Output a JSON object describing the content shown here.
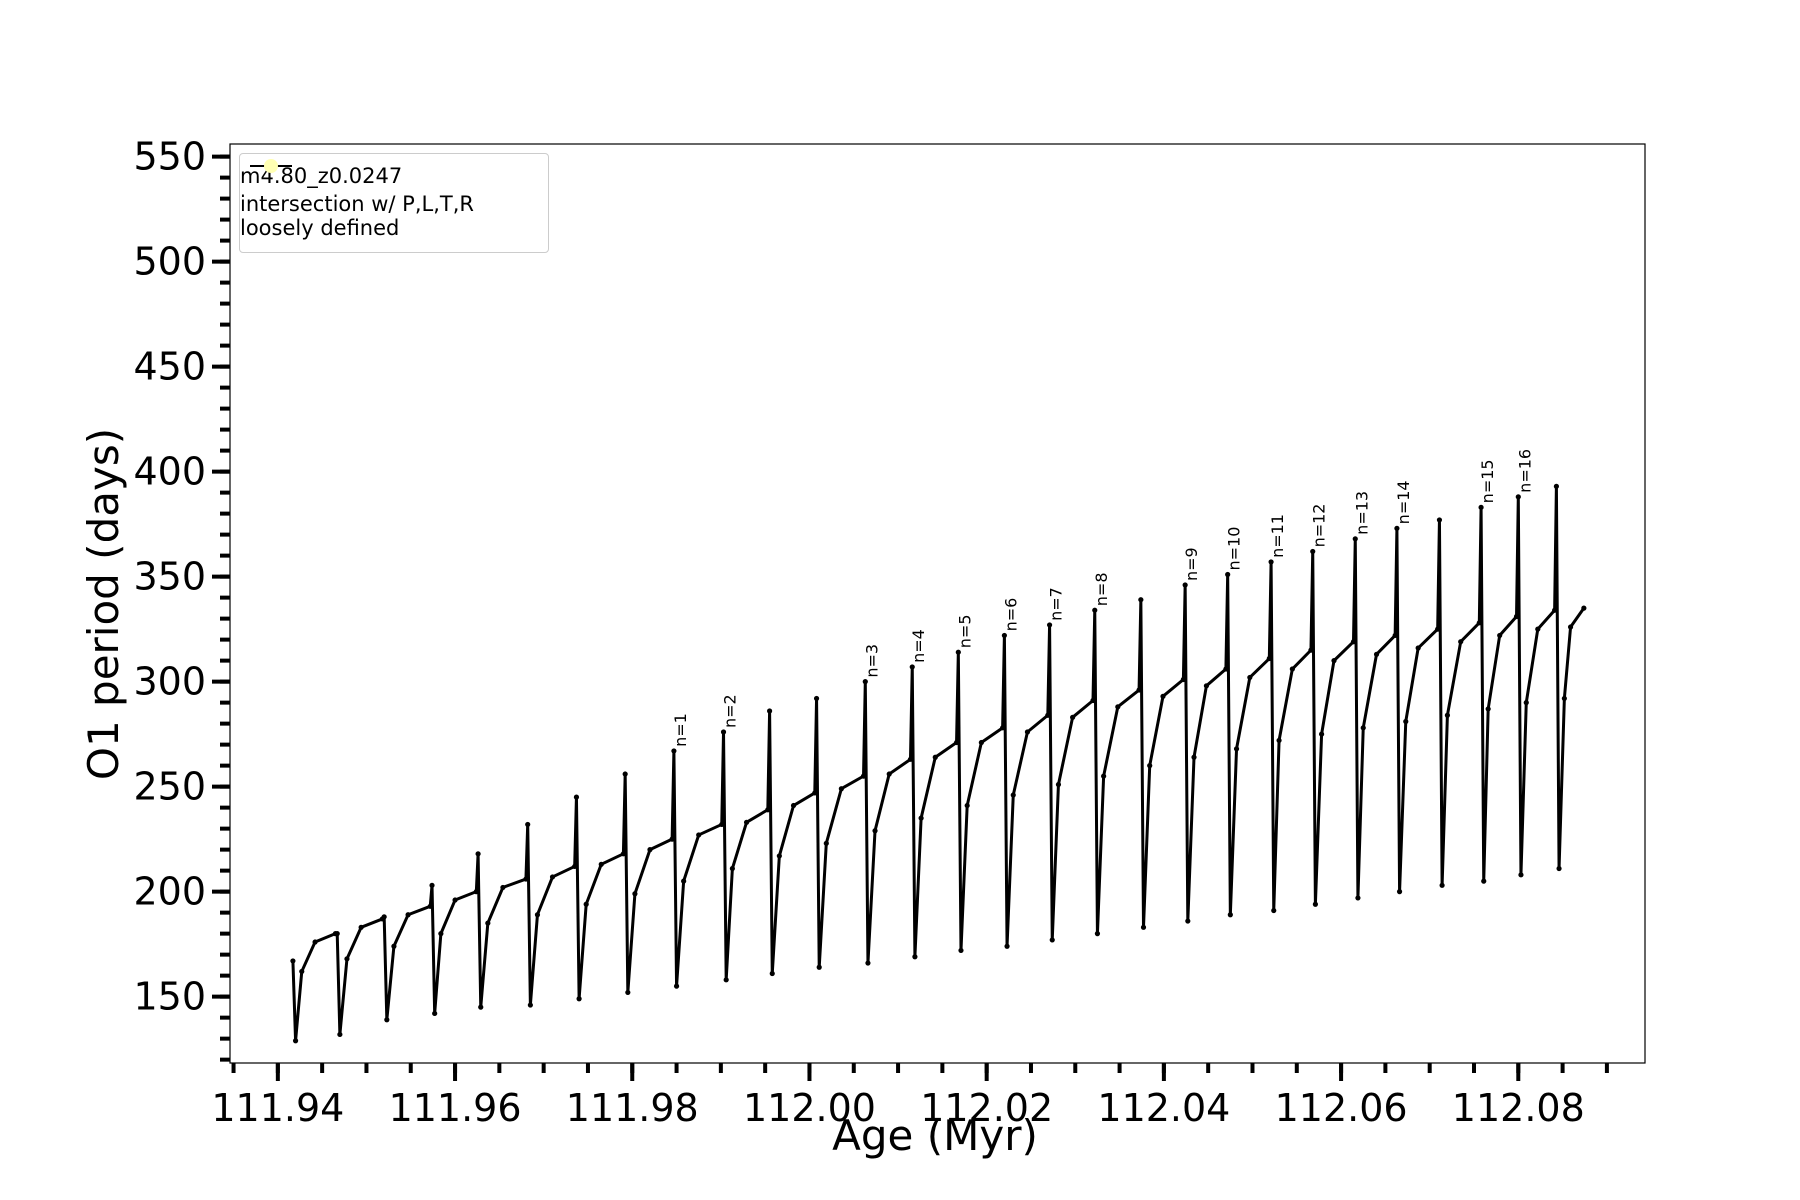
{
  "chart_data": {
    "type": "line",
    "xlabel": "Age (Myr)",
    "ylabel": "O1 period (days)",
    "xlim": [
      111.9346,
      112.0943
    ],
    "ylim": [
      118.4,
      556
    ],
    "xticks": [
      111.94,
      111.96,
      111.98,
      {
        "value": 112,
        "label": "112.00"
      },
      112.02,
      112.04,
      112.06,
      112.08
    ],
    "yticks": [
      150,
      200,
      250,
      300,
      350,
      400,
      450,
      500,
      550
    ],
    "xminorticks": [
      111.935,
      111.94,
      111.945,
      111.95,
      111.955,
      111.96,
      111.965,
      111.97,
      111.975,
      111.98,
      111.985,
      111.99,
      111.995,
      112,
      112.005,
      112.01,
      112.015,
      112.02,
      112.025,
      112.03,
      112.035,
      112.04,
      112.045,
      112.05,
      112.055,
      112.06,
      112.065,
      112.07,
      112.075,
      112.08,
      112.085,
      112.09
    ],
    "yminorticks": [
      120,
      130,
      140,
      150,
      160,
      170,
      180,
      190,
      200,
      210,
      220,
      230,
      240,
      250,
      260,
      270,
      280,
      290,
      300,
      310,
      320,
      330,
      340,
      350,
      360,
      370,
      380,
      390,
      400,
      410,
      420,
      430,
      440,
      450,
      460,
      470,
      480,
      490,
      500,
      510,
      520,
      530,
      540,
      550
    ],
    "grid": false,
    "legend": "upper left",
    "series": [
      {
        "name": "m4.80_z0.0247",
        "color": "#000000",
        "type": "line",
        "x": [
          111.9417,
          111.942,
          111.9427,
          111.9442,
          111.9465,
          111.9467,
          111.947,
          111.9478,
          111.9494,
          111.9518,
          111.952,
          111.9523,
          111.9531,
          111.9547,
          111.9572,
          111.9574,
          111.9577,
          111.9584,
          111.96,
          111.9624,
          111.9626,
          111.9629,
          111.9637,
          111.9654,
          111.968,
          111.9682,
          111.9685,
          111.9693,
          111.971,
          111.9735,
          111.9737,
          111.974,
          111.9748,
          111.9765,
          111.979,
          111.9792,
          111.9795,
          111.9803,
          111.982,
          111.9845,
          111.9847,
          111.985,
          111.9858,
          111.9875,
          111.9901,
          111.9903,
          111.9906,
          111.9913,
          111.9929,
          111.9953,
          111.9955,
          111.9958,
          111.9966,
          111.9982,
          112.0006,
          112.0008,
          112.0011,
          112.0019,
          112.0036,
          112.0061,
          112.0063,
          112.0066,
          112.0074,
          112.009,
          112.0114,
          112.0116,
          112.0119,
          112.0126,
          112.0142,
          112.0166,
          112.0168,
          112.0171,
          112.0178,
          112.0194,
          112.0218,
          112.022,
          112.0223,
          112.023,
          112.0246,
          112.0269,
          112.0271,
          112.0274,
          112.0281,
          112.0297,
          112.032,
          112.0322,
          112.0325,
          112.0332,
          112.0348,
          112.0372,
          112.0374,
          112.0377,
          112.0384,
          112.0399,
          112.0422,
          112.0424,
          112.0427,
          112.0434,
          112.0448,
          112.047,
          112.0472,
          112.0475,
          112.0482,
          112.0497,
          112.0519,
          112.0521,
          112.0524,
          112.053,
          112.0545,
          112.0566,
          112.0568,
          112.0571,
          112.0578,
          112.0592,
          112.0614,
          112.0616,
          112.0619,
          112.0625,
          112.064,
          112.0661,
          112.0663,
          112.0666,
          112.0673,
          112.0687,
          112.0709,
          112.0711,
          112.0714,
          112.072,
          112.0735,
          112.0756,
          112.0758,
          112.0761,
          112.0766,
          112.0779,
          112.0798,
          112.08,
          112.0803,
          112.0809,
          112.0822,
          112.0841,
          112.0843,
          112.0846,
          112.0852,
          112.0859,
          112.0874
        ],
        "values": [
          167,
          129,
          162,
          176,
          180,
          180,
          132,
          168,
          183,
          187,
          188,
          139,
          174,
          189,
          193,
          203,
          142,
          180,
          196,
          200,
          218,
          145,
          185,
          202,
          206,
          232,
          146,
          189,
          207,
          212,
          245,
          149,
          194,
          213,
          218,
          256,
          152,
          199,
          220,
          225,
          267,
          155,
          205,
          227,
          232,
          276,
          158,
          211,
          233,
          239,
          286,
          161,
          217,
          241,
          247,
          292,
          164,
          223,
          249,
          255,
          300,
          166,
          229,
          256,
          263,
          307,
          169,
          235,
          264,
          271,
          314,
          172,
          241,
          271,
          278,
          322,
          174,
          246,
          276,
          284,
          327,
          177,
          251,
          283,
          291,
          334,
          180,
          255,
          288,
          296,
          339,
          183,
          260,
          293,
          301,
          346,
          186,
          264,
          298,
          306,
          351,
          189,
          268,
          302,
          311,
          357,
          191,
          272,
          306,
          315,
          362,
          194,
          275,
          310,
          319,
          368,
          197,
          278,
          313,
          322,
          373,
          200,
          281,
          316,
          325,
          377,
          203,
          284,
          319,
          328,
          383,
          205,
          287,
          322,
          331,
          388,
          208,
          290,
          325,
          334,
          393,
          211,
          292,
          326,
          335
        ]
      },
      {
        "name": "intersection w/ P,L,T,R\nloosely defined",
        "color": "#ffffb3",
        "type": "scatter",
        "x": [],
        "values": []
      }
    ],
    "annotations": [
      {
        "text": "n=1",
        "x": 111.9847,
        "y": 267
      },
      {
        "text": "n=2",
        "x": 111.9903,
        "y": 276
      },
      {
        "text": "n=3",
        "x": 112.0063,
        "y": 300
      },
      {
        "text": "n=4",
        "x": 112.0116,
        "y": 307
      },
      {
        "text": "n=5",
        "x": 112.0168,
        "y": 314
      },
      {
        "text": "n=6",
        "x": 112.022,
        "y": 322
      },
      {
        "text": "n=7",
        "x": 112.0271,
        "y": 327
      },
      {
        "text": "n=8",
        "x": 112.0322,
        "y": 334
      },
      {
        "text": "n=9",
        "x": 112.0424,
        "y": 346
      },
      {
        "text": "n=10",
        "x": 112.0472,
        "y": 351
      },
      {
        "text": "n=11",
        "x": 112.0521,
        "y": 357
      },
      {
        "text": "n=12",
        "x": 112.0568,
        "y": 362
      },
      {
        "text": "n=13",
        "x": 112.0616,
        "y": 368
      },
      {
        "text": "n=14",
        "x": 112.0663,
        "y": 373
      },
      {
        "text": "n=15",
        "x": 112.0758,
        "y": 383
      },
      {
        "text": "n=16",
        "x": 112.08,
        "y": 388
      }
    ]
  }
}
